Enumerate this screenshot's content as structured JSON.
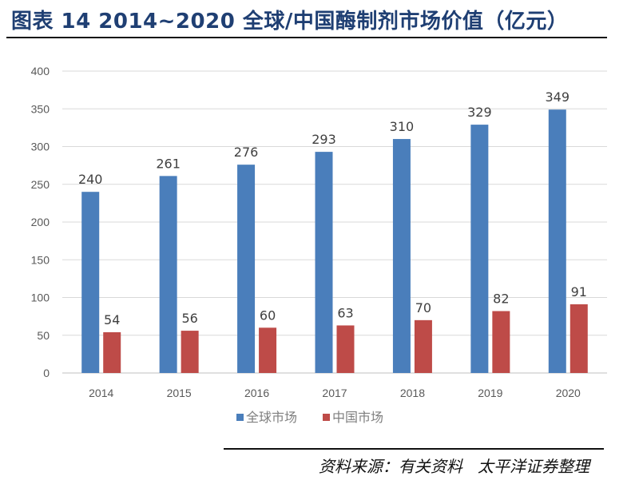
{
  "title": "图表 14 2014~2020 全球/中国酶制剂市场价值（亿元）",
  "source": "资料来源：有关资料   太平洋证券整理",
  "chart_data": {
    "type": "bar",
    "title": "2014~2020 全球/中国酶制剂市场价值（亿元）",
    "xlabel": "",
    "ylabel": "",
    "categories": [
      "2014",
      "2015",
      "2016",
      "2017",
      "2018",
      "2019",
      "2020"
    ],
    "series": [
      {
        "name": "全球市场",
        "color": "#4a7ebb",
        "values": [
          240,
          261,
          276,
          293,
          310,
          329,
          349
        ]
      },
      {
        "name": "中国市场",
        "color": "#be4b48",
        "values": [
          54,
          56,
          60,
          63,
          70,
          82,
          91
        ]
      }
    ],
    "ylim": [
      0,
      400
    ],
    "yticks": [
      0,
      50,
      100,
      150,
      200,
      250,
      300,
      350,
      400
    ],
    "grid": true,
    "legend": "bottom"
  }
}
